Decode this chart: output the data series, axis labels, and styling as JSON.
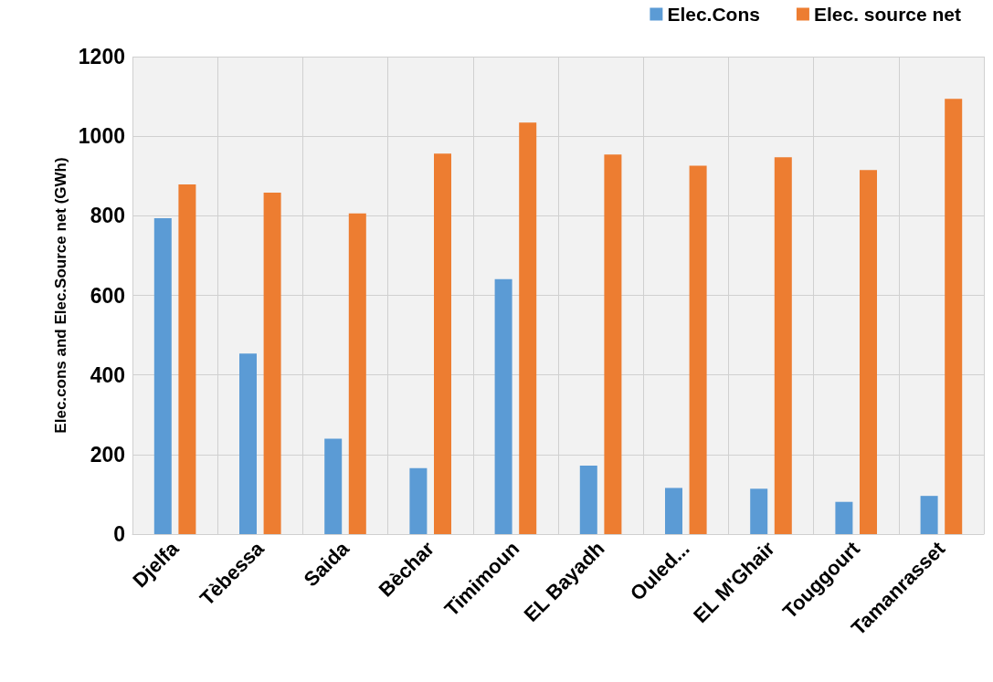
{
  "chart_data": {
    "type": "bar",
    "ylabel": "Elec.cons and Elec.Source net (GWh)",
    "categories": [
      "Djelfa",
      "Tèbessa",
      "Saida",
      "Bèchar",
      "Timimoun",
      "EL Bayadh",
      "Ouled...",
      "EL M'Ghair",
      "Touggourt",
      "Tamanrasset"
    ],
    "series": [
      {
        "name": "Elec.Cons",
        "color": "#5b9bd5",
        "values": [
          794,
          454,
          240,
          166,
          641,
          172,
          116,
          114,
          81,
          96
        ]
      },
      {
        "name": "Elec. source net",
        "color": "#ed7d31",
        "values": [
          879,
          858,
          806,
          956,
          1034,
          954,
          926,
          947,
          915,
          1094
        ]
      }
    ],
    "ylim": [
      0,
      1200
    ],
    "yticks": [
      0,
      200,
      400,
      600,
      800,
      1000,
      1200
    ],
    "grid": true,
    "legend": "top right"
  }
}
